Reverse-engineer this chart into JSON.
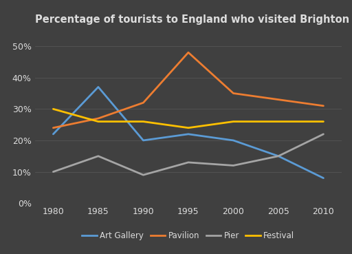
{
  "title": "Percentage of tourists to England who visited Brighton attractions",
  "years": [
    1980,
    1985,
    1990,
    1995,
    2000,
    2005,
    2010
  ],
  "series": {
    "Art Gallery": {
      "values": [
        22,
        37,
        20,
        22,
        20,
        15,
        8
      ],
      "color": "#5B9BD5"
    },
    "Pavilion": {
      "values": [
        24,
        27,
        32,
        48,
        35,
        33,
        31
      ],
      "color": "#ED7D31"
    },
    "Pier": {
      "values": [
        10,
        15,
        9,
        13,
        12,
        15,
        22
      ],
      "color": "#A5A5A5"
    },
    "Festival": {
      "values": [
        30,
        26,
        26,
        24,
        26,
        26,
        26
      ],
      "color": "#FFC000"
    }
  },
  "ylim": [
    0,
    55
  ],
  "yticks": [
    0,
    10,
    20,
    30,
    40,
    50
  ],
  "xlim": [
    1978,
    2012
  ],
  "background_color": "#404040",
  "grid_color": "#5a5a5a",
  "text_color": "#DDDDDD",
  "title_fontsize": 10.5,
  "tick_fontsize": 9,
  "legend_fontsize": 8.5,
  "linewidth": 2.0
}
